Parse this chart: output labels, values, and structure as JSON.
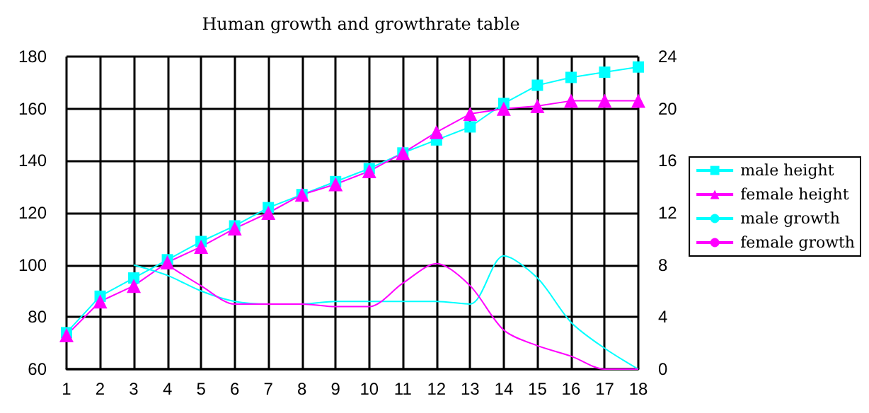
{
  "chart_data": {
    "type": "line",
    "title": "Human growth and growthrate table",
    "categories": [
      "1",
      "2",
      "3",
      "4",
      "5",
      "6",
      "7",
      "8",
      "9",
      "10",
      "11",
      "12",
      "13",
      "14",
      "15",
      "16",
      "17",
      "18"
    ],
    "series": [
      {
        "name": "male height",
        "color": "#00ffff",
        "marker": "square",
        "values": [
          74,
          88,
          95,
          102,
          109,
          115,
          122,
          127,
          132,
          137,
          143,
          148,
          153,
          162,
          169,
          172,
          174,
          176
        ]
      },
      {
        "name": "female height",
        "color": "#ff00ff",
        "marker": "triangle",
        "values": [
          73,
          86,
          92,
          101,
          107,
          114,
          120,
          127,
          131,
          136,
          143,
          151,
          158,
          160,
          161,
          163,
          163,
          163
        ]
      },
      {
        "name": "male growth",
        "color": "#00ffff",
        "marker": "none",
        "axis": "y2",
        "values": [
          null,
          null,
          8,
          7.2,
          6,
          5.2,
          5,
          5,
          5.2,
          5.2,
          5.2,
          5.2,
          5,
          8.7,
          7,
          3.6,
          1.6,
          0
        ]
      },
      {
        "name": "female growth",
        "color": "#ff00ff",
        "marker": "none",
        "axis": "y2",
        "values": [
          null,
          null,
          null,
          8,
          6.4,
          5,
          5,
          5,
          4.8,
          4.8,
          6.6,
          8.1,
          6.4,
          3,
          1.8,
          1,
          0,
          0
        ]
      }
    ],
    "ylim": [
      60,
      180
    ],
    "yticks": [
      60,
      80,
      100,
      120,
      140,
      160,
      180
    ],
    "y2lim": [
      0,
      24
    ],
    "y2ticks": [
      0,
      4,
      8,
      12,
      16,
      20,
      24
    ],
    "grid": true,
    "legend": "right"
  }
}
